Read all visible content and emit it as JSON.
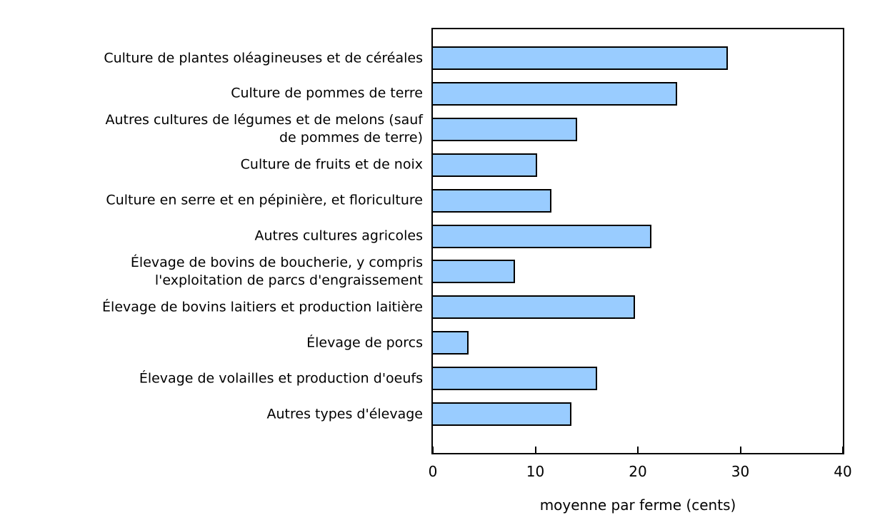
{
  "chart_data": {
    "type": "bar",
    "orientation": "horizontal",
    "title": "",
    "xlabel": "moyenne par ferme (cents)",
    "ylabel": "",
    "xlim": [
      0,
      40
    ],
    "xticks": [
      0,
      10,
      20,
      30,
      40
    ],
    "grid": false,
    "legend": null,
    "categories": [
      "Culture de plantes oléagineuses et de céréales",
      "Culture de pommes de terre",
      "Autres cultures de légumes et de melons (sauf\nde pommes de terre)",
      "Culture de fruits et de noix",
      "Culture en serre et en pépinière, et floriculture",
      "Autres cultures agricoles",
      "Élevage de bovins de boucherie, y compris\nl'exploitation de parcs d'engraissement",
      "Élevage de bovins laitiers et production laitière",
      "Élevage de porcs",
      "Élevage de volailles et production d'oeufs",
      "Autres types d'élevage"
    ],
    "values": [
      28.8,
      23.8,
      14.1,
      10.2,
      11.6,
      21.3,
      8.0,
      19.7,
      3.5,
      16.0,
      13.5
    ],
    "colors": {
      "bar_fill": "#99CCFF",
      "bar_border": "#000000",
      "axis": "#000000",
      "text": "#000000",
      "background": "#FFFFFF"
    }
  }
}
